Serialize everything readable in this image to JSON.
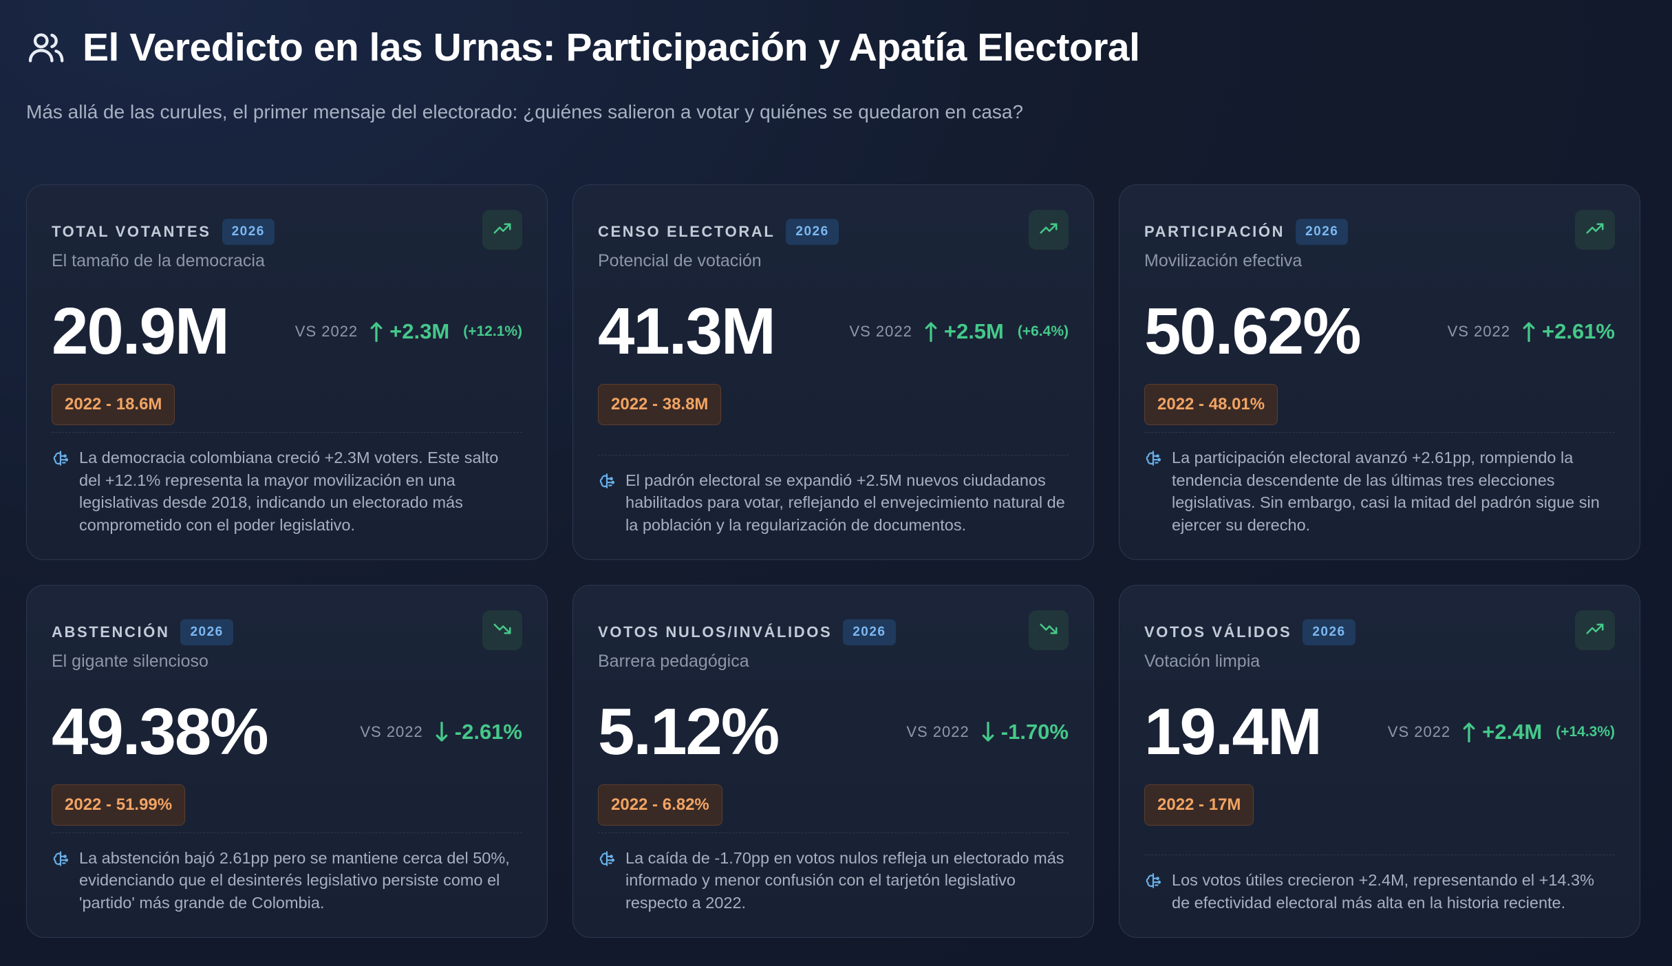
{
  "header": {
    "title": "El Veredicto en las Urnas: Participación y Apatía Electoral",
    "subtitle": "Más allá de las curules, el primer mensaje del electorado: ¿quiénes salieron a votar y quiénes se quedaron en casa?",
    "icon": "users-icon"
  },
  "colors": {
    "background": "#131b2d",
    "card": "#1b2438",
    "positive": "#45c98a",
    "badge_year": "#7cb8f2",
    "badge_prev": "#f2a463"
  },
  "cards": [
    {
      "label": "TOTAL VOTANTES",
      "year": "2026",
      "desc": "El tamaño de la democracia",
      "value": "20.9M",
      "vs": "VS 2022",
      "delta": "+2.3M",
      "delta_pct": "(+12.1%)",
      "prev": "2022 - 18.6M",
      "trend": "up",
      "insight": "La democracia colombiana creció +2.3M voters. Este salto del +12.1% representa la mayor movilización en una legislativas desde 2018, indicando un electorado más comprometido con el poder legislativo."
    },
    {
      "label": "CENSO ELECTORAL",
      "year": "2026",
      "desc": "Potencial de votación",
      "value": "41.3M",
      "vs": "VS 2022",
      "delta": "+2.5M",
      "delta_pct": "(+6.4%)",
      "prev": "2022 - 38.8M",
      "trend": "up",
      "insight": "El padrón electoral se expandió +2.5M nuevos ciudadanos habilitados para votar, reflejando el envejecimiento natural de la población y la regularización de documentos."
    },
    {
      "label": "PARTICIPACIÓN",
      "year": "2026",
      "desc": "Movilización efectiva",
      "value": "50.62%",
      "vs": "VS 2022",
      "delta": "+2.61%",
      "delta_pct": "",
      "prev": "2022 - 48.01%",
      "trend": "up",
      "insight": "La participación electoral avanzó +2.61pp, rompiendo la tendencia descendente de las últimas tres elecciones legislativas. Sin embargo, casi la mitad del padrón sigue sin ejercer su derecho."
    },
    {
      "label": "ABSTENCIÓN",
      "year": "2026",
      "desc": "El gigante silencioso",
      "value": "49.38%",
      "vs": "VS 2022",
      "delta": "-2.61%",
      "delta_pct": "",
      "prev": "2022 - 51.99%",
      "trend": "down",
      "insight": "La abstención bajó 2.61pp pero se mantiene cerca del 50%, evidenciando que el desinterés legislativo persiste como el 'partido' más grande de Colombia."
    },
    {
      "label": "VOTOS NULOS/INVÁLIDOS",
      "year": "2026",
      "desc": "Barrera pedagógica",
      "value": "5.12%",
      "vs": "VS 2022",
      "delta": "-1.70%",
      "delta_pct": "",
      "prev": "2022 - 6.82%",
      "trend": "down",
      "insight": "La caída de -1.70pp en votos nulos refleja un electorado más informado y menor confusión con el tarjetón legislativo respecto a 2022."
    },
    {
      "label": "VOTOS VÁLIDOS",
      "year": "2026",
      "desc": "Votación limpia",
      "value": "19.4M",
      "vs": "VS 2022",
      "delta": "+2.4M",
      "delta_pct": "(+14.3%)",
      "prev": "2022 - 17M",
      "trend": "up",
      "insight": "Los votos útiles crecieron +2.4M, representando el +14.3% de efectividad electoral más alta en la historia reciente."
    }
  ]
}
